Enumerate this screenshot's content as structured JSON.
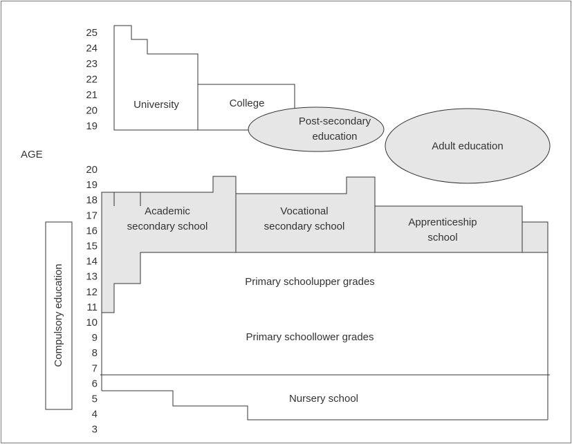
{
  "axis_label": "AGE",
  "ages_upper": [
    25,
    24,
    23,
    22,
    21,
    20,
    19
  ],
  "ages_lower": [
    20,
    19,
    18,
    17,
    16,
    15,
    14,
    13,
    12,
    11,
    10,
    9,
    8,
    7,
    6,
    5,
    4,
    3
  ],
  "side_label": "Compulsory education",
  "nodes": [
    {
      "lines": [
        "University"
      ]
    },
    {
      "lines": [
        "College"
      ]
    },
    {
      "lines": [
        "Post-secondary",
        "education"
      ]
    },
    {
      "lines": [
        "Adult education"
      ]
    },
    {
      "lines": [
        "Academic",
        "secondary school"
      ]
    },
    {
      "lines": [
        "Vocational",
        "secondary school"
      ]
    },
    {
      "lines": [
        "Apprenticeship",
        "school"
      ]
    },
    {
      "lines": [
        "Primary schoolupper grades"
      ]
    },
    {
      "lines": [
        "Primary schoollower grades"
      ]
    },
    {
      "lines": [
        "Nursery school"
      ]
    }
  ]
}
